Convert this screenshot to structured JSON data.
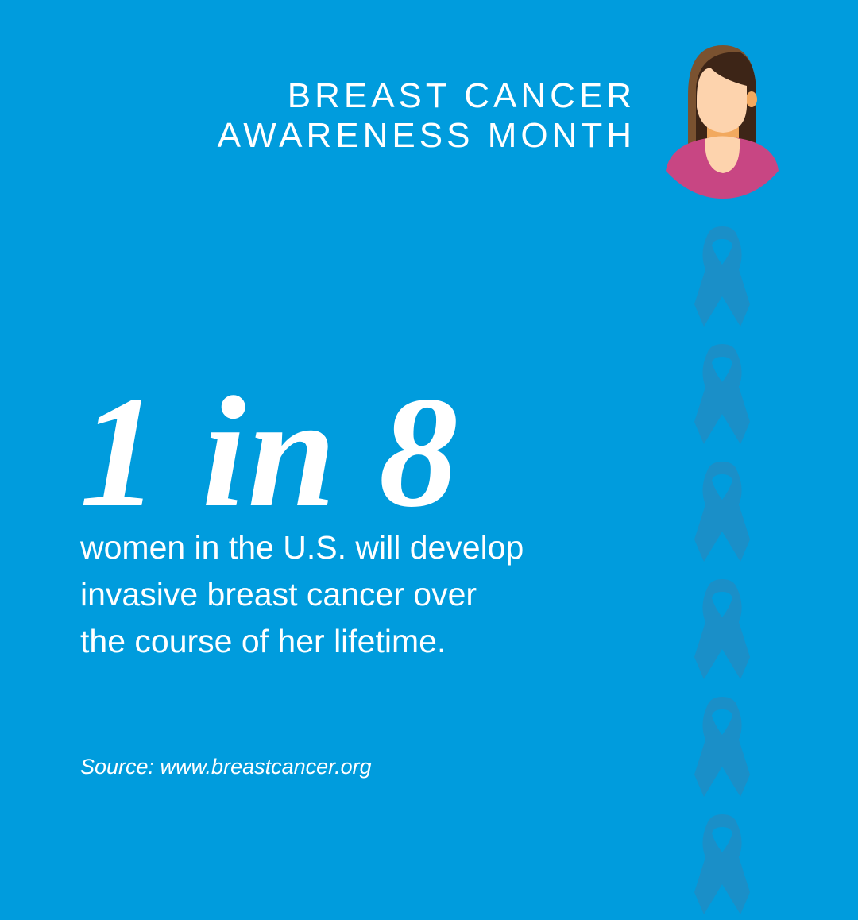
{
  "header": {
    "title_line1": "BREAST CANCER",
    "title_line2": "AWARENESS MONTH"
  },
  "stat": {
    "headline": "1 in 8",
    "description_lines": [
      "women in the U.S. will develop",
      "invasive breast cancer over",
      "the course of her lifetime."
    ]
  },
  "source": "Source: www.breastcancer.org",
  "icons": [
    "woman-avatar-icon",
    "awareness-ribbon-icon"
  ],
  "colors": {
    "background": "#009cdd",
    "ribbon": "#1a8fc8",
    "shirt": "#c84683",
    "skin": "#fdd3ad",
    "hair": "#3d2517"
  }
}
